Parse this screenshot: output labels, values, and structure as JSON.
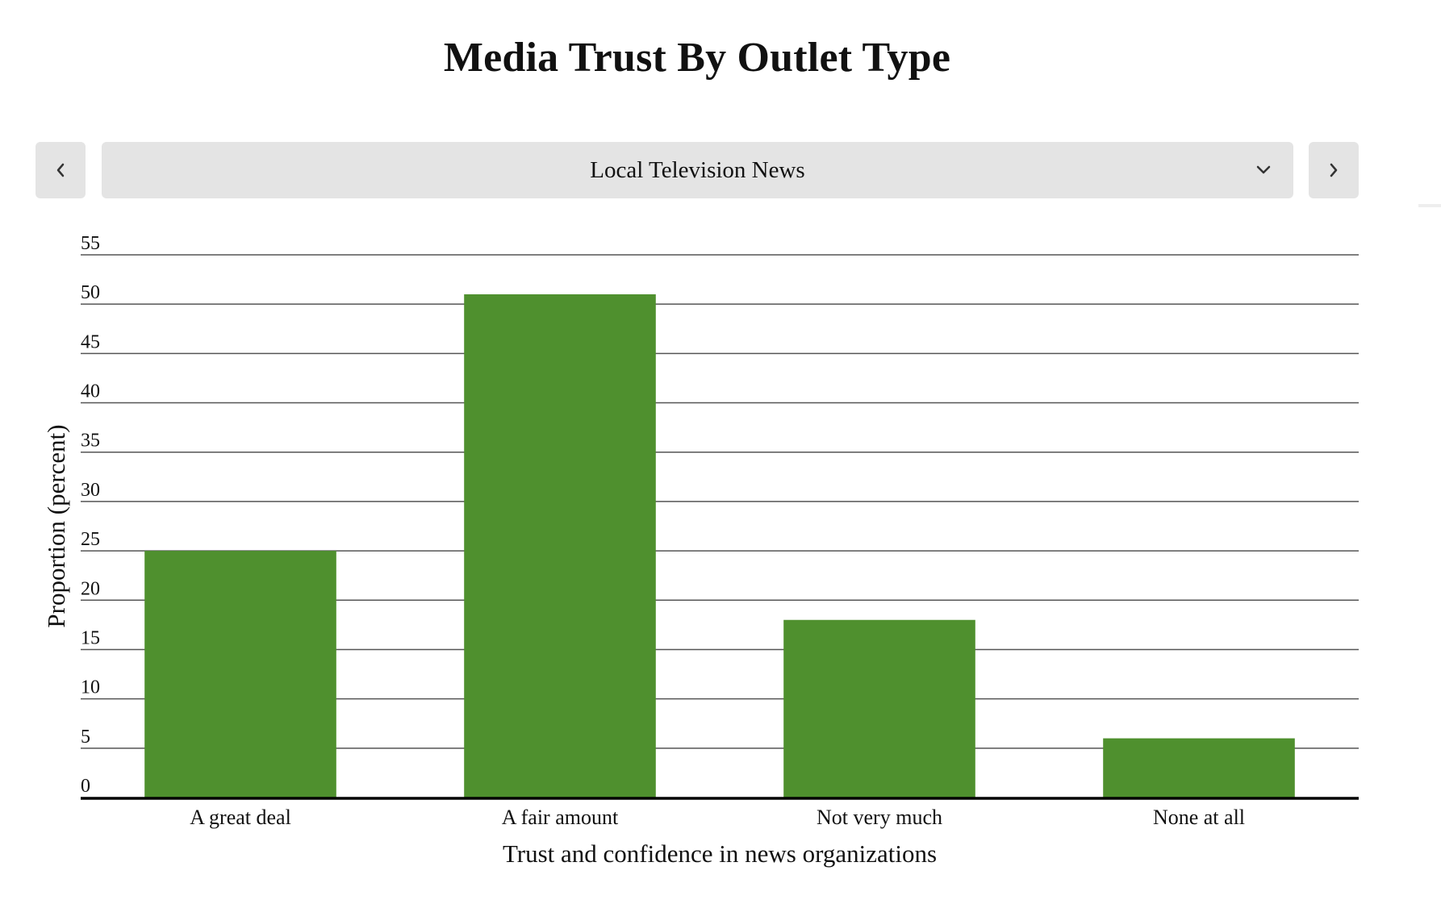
{
  "page": {
    "title": "Media Trust By Outlet Type"
  },
  "selector": {
    "selected": "Local Television News",
    "prev_icon": "chevron-left-icon",
    "next_icon": "chevron-right-icon",
    "dropdown_icon": "chevron-down-icon"
  },
  "chart_data": {
    "type": "bar",
    "title": "Media Trust By Outlet Type",
    "xlabel": "Trust and confidence in news organizations",
    "ylabel": "Proportion (percent)",
    "categories": [
      "A great deal",
      "A fair amount",
      "Not very much",
      "None at all"
    ],
    "values": [
      25,
      51,
      18,
      6
    ],
    "yticks": [
      0,
      5,
      10,
      15,
      20,
      25,
      30,
      35,
      40,
      45,
      50,
      55
    ],
    "ylim": [
      0,
      55
    ],
    "grid": true,
    "legend": "none",
    "bar_color": "#4f902e"
  }
}
